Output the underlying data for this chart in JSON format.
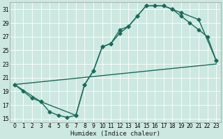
{
  "xlabel": "Humidex (Indice chaleur)",
  "bg_color": "#cce8e0",
  "grid_color": "#b0d8cc",
  "line_color": "#1a6b5a",
  "xlim": [
    -0.5,
    23.5
  ],
  "ylim": [
    14.5,
    32
  ],
  "xticks": [
    0,
    1,
    2,
    3,
    4,
    5,
    6,
    7,
    8,
    9,
    10,
    11,
    12,
    13,
    14,
    15,
    16,
    17,
    18,
    19,
    20,
    21,
    22,
    23
  ],
  "yticks": [
    15,
    17,
    19,
    21,
    23,
    25,
    27,
    29,
    31
  ],
  "curve1_x": [
    0,
    1,
    2,
    3,
    4,
    5,
    6,
    7,
    8,
    9,
    10,
    11,
    12,
    13,
    14,
    15,
    16,
    17,
    18,
    19,
    20,
    21,
    22,
    23
  ],
  "curve1_y": [
    20,
    19,
    18,
    17.5,
    16,
    15.5,
    15.2,
    15.5,
    20,
    22,
    25.5,
    26,
    28,
    28.5,
    30,
    31.5,
    31.5,
    31.5,
    31.0,
    30.0,
    29.0,
    28.0,
    27.0,
    23.5
  ],
  "curve2_x": [
    0,
    3,
    7,
    8,
    9,
    10,
    11,
    12,
    13,
    14,
    15,
    16,
    17,
    18,
    19,
    21,
    23
  ],
  "curve2_y": [
    20,
    17.5,
    15.5,
    20,
    22,
    25.5,
    26,
    27.5,
    28.5,
    30,
    31.5,
    31.5,
    31.5,
    31.0,
    30.5,
    29.5,
    23.5
  ],
  "line_x": [
    0,
    23
  ],
  "line_y": [
    20,
    23
  ],
  "marker": "D",
  "markersize": 2.5,
  "linewidth": 1.0
}
